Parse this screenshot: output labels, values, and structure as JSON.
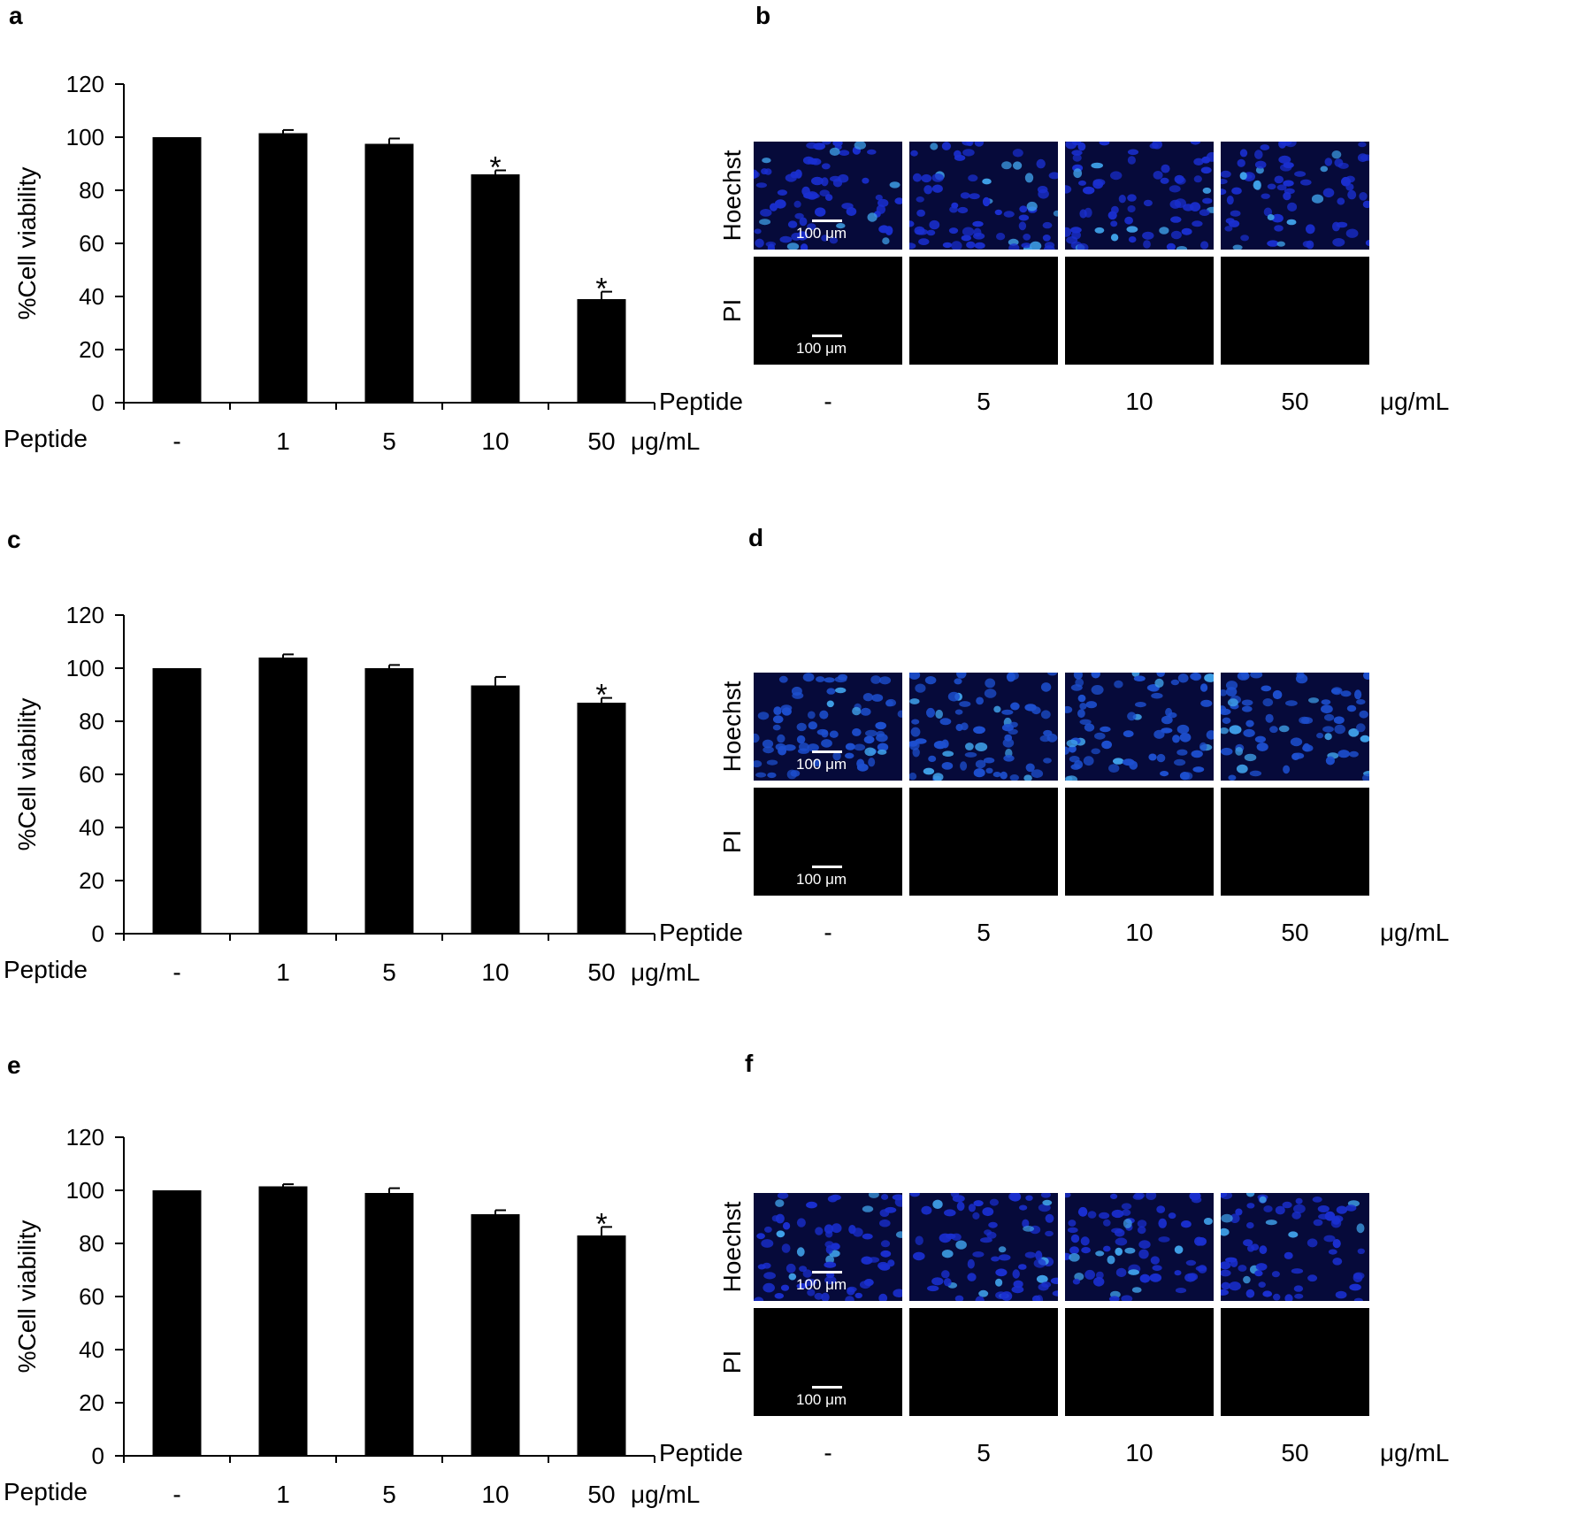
{
  "panels": [
    {
      "letter": "a",
      "chart_data": {
        "type": "bar",
        "categories": [
          "-",
          "1",
          "5",
          "10",
          "50"
        ],
        "values": [
          100,
          101.5,
          97.5,
          86,
          39
        ],
        "errors": [
          0,
          1.2,
          2,
          1.5,
          2.8
        ],
        "significant": [
          false,
          false,
          false,
          true,
          true
        ],
        "significance_marker": "*",
        "ylabel": "%Cell viability",
        "xlabel": "Peptide",
        "unit": "μg/mL",
        "ylim": [
          0,
          120
        ],
        "yticks": [
          0,
          20,
          40,
          60,
          80,
          100,
          120
        ],
        "bar_color": "#000000"
      }
    },
    {
      "letter": "c",
      "chart_data": {
        "type": "bar",
        "categories": [
          "-",
          "1",
          "5",
          "10",
          "50"
        ],
        "values": [
          100,
          104,
          100,
          93.5,
          87
        ],
        "errors": [
          0,
          1.2,
          1.2,
          3.2,
          1.8
        ],
        "significant": [
          false,
          false,
          false,
          false,
          true
        ],
        "significance_marker": "*",
        "ylabel": "%Cell viability",
        "xlabel": "Peptide",
        "unit": "μg/mL",
        "ylim": [
          0,
          120
        ],
        "yticks": [
          0,
          20,
          40,
          60,
          80,
          100,
          120
        ],
        "bar_color": "#000000"
      }
    },
    {
      "letter": "e",
      "chart_data": {
        "type": "bar",
        "categories": [
          "-",
          "1",
          "5",
          "10",
          "50"
        ],
        "values": [
          100,
          101.5,
          99,
          91,
          83
        ],
        "errors": [
          0,
          0.8,
          1.8,
          1.5,
          3.2
        ],
        "significant": [
          false,
          false,
          false,
          false,
          true
        ],
        "significance_marker": "*",
        "ylabel": "%Cell viability",
        "xlabel": "Peptide",
        "unit": "μg/mL",
        "ylim": [
          0,
          120
        ],
        "yticks": [
          0,
          20,
          40,
          60,
          80,
          100,
          120
        ],
        "bar_color": "#000000"
      }
    }
  ],
  "micrographs": [
    {
      "letter": "b",
      "rows": [
        {
          "label": "Hoechst",
          "color": "#1a2fd0"
        },
        {
          "label": "PI",
          "color": "#000000"
        }
      ],
      "scale_bar": "100 μm",
      "xlabel": "Peptide",
      "columns": [
        "-",
        "5",
        "10",
        "50"
      ],
      "unit": "μg/mL"
    },
    {
      "letter": "d",
      "rows": [
        {
          "label": "Hoechst",
          "color": "#1d4fcf"
        },
        {
          "label": "PI",
          "color": "#000000"
        }
      ],
      "scale_bar": "100 μm",
      "xlabel": "Peptide",
      "columns": [
        "-",
        "5",
        "10",
        "50"
      ],
      "unit": "μg/mL"
    },
    {
      "letter": "f",
      "rows": [
        {
          "label": "Hoechst",
          "color": "#1a2fd0"
        },
        {
          "label": "PI",
          "color": "#000000"
        }
      ],
      "scale_bar": "100 μm",
      "xlabel": "Peptide",
      "columns": [
        "-",
        "5",
        "10",
        "50"
      ],
      "unit": "μg/mL"
    }
  ]
}
